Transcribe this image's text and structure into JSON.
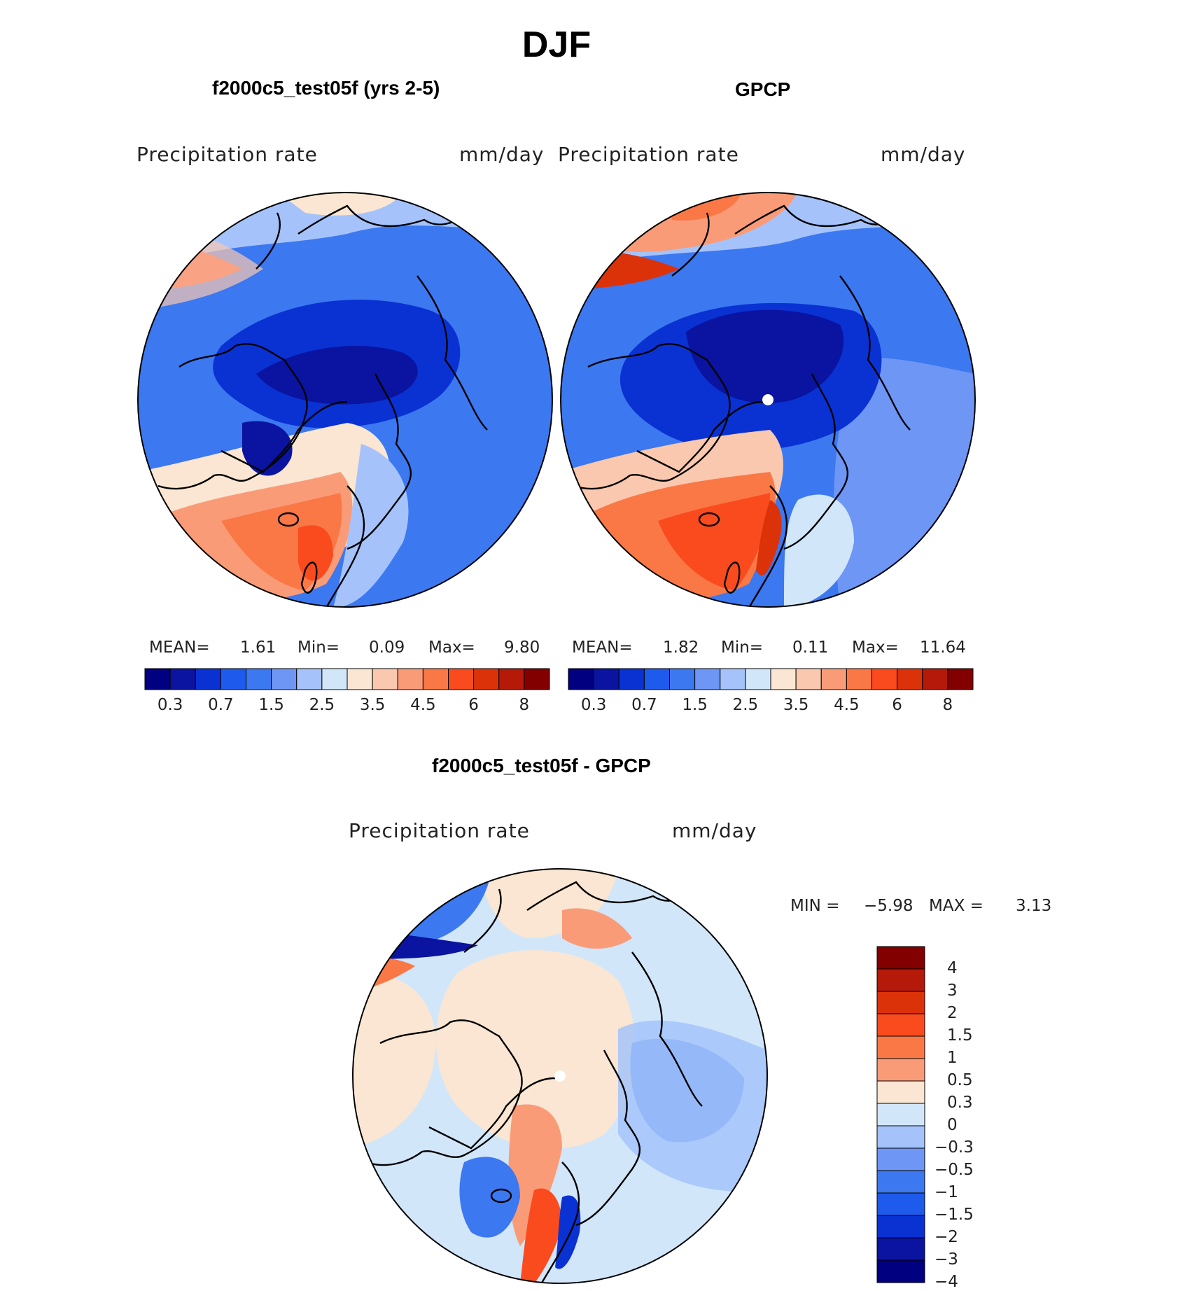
{
  "title": "DJF",
  "panels": [
    {
      "title": "f2000c5_test05f (yrs 2-5)",
      "variable": "Precipitation  rate",
      "units": "mm/day",
      "stats": {
        "mean_label": "MEAN=",
        "mean": "1.61",
        "min_label": "Min=",
        "min": "0.09",
        "max_label": "Max=",
        "max": "9.80"
      }
    },
    {
      "title": "GPCP",
      "variable": "Precipitation  rate",
      "units": "mm/day",
      "stats": {
        "mean_label": "MEAN=",
        "mean": "1.82",
        "min_label": "Min=",
        "min": "0.11",
        "max_label": "Max=",
        "max": "11.64"
      }
    }
  ],
  "abs_colorbar": {
    "colors": [
      "#000080",
      "#0a14a0",
      "#0a32d2",
      "#1e5aeb",
      "#3c78f0",
      "#6e96f5",
      "#a5c3fa",
      "#d2e6fa",
      "#fae6d2",
      "#fac8af",
      "#fa9b78",
      "#fa7846",
      "#fa4b1e",
      "#dc320a",
      "#b4190a",
      "#820000"
    ],
    "labels": [
      "0.3",
      "0.7",
      "1.5",
      "2.5",
      "3.5",
      "4.5",
      "6",
      "8"
    ]
  },
  "diff_panel": {
    "title": "f2000c5_test05f - GPCP",
    "variable": "Precipitation  rate",
    "units": "mm/day",
    "stats": {
      "min_label": "MIN =",
      "min": "−5.98",
      "max_label": "MAX =",
      "max": "3.13"
    }
  },
  "diff_colorbar": {
    "colors": [
      "#820000",
      "#b4190a",
      "#dc320a",
      "#fa4b1e",
      "#fa7846",
      "#fa9b78",
      "#fae6d2",
      "#d2e6fa",
      "#a5c3fa",
      "#6e96f5",
      "#3c78f0",
      "#1e5aeb",
      "#0a32d2",
      "#0a14a0",
      "#000080"
    ],
    "labels": [
      "4",
      "3",
      "2",
      "1.5",
      "1",
      "0.5",
      "0.3",
      "0",
      "−0.3",
      "−0.5",
      "−1",
      "−1.5",
      "−2",
      "−3",
      "−4"
    ]
  }
}
